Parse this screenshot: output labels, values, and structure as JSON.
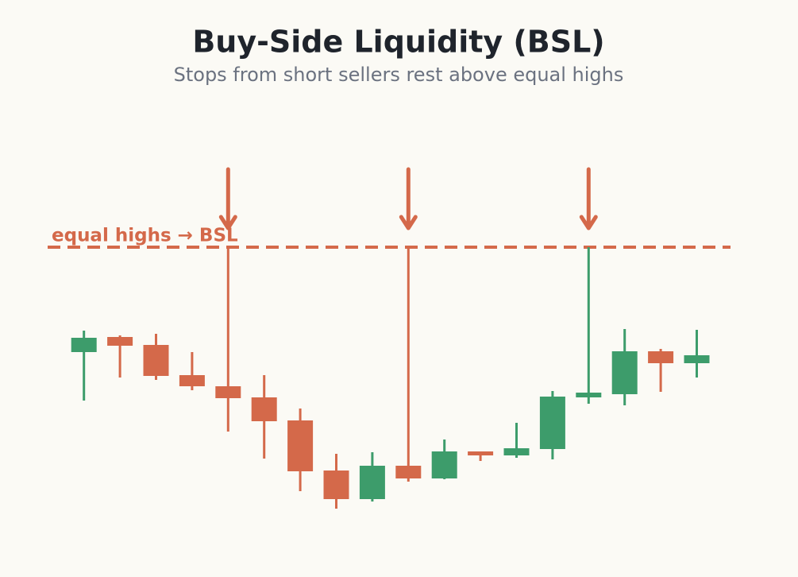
{
  "chart_data": {
    "type": "candlestick",
    "title": "Buy-Side Liquidity (BSL)",
    "subtitle": "Stops from short sellers rest above equal highs",
    "annotation": "equal highs → BSL",
    "level": 84.75,
    "up_color": "#3d9c6b",
    "down_color": "#d4694a",
    "level_color": "#d4694a",
    "ylim": [
      0,
      130
    ],
    "open": [
      51.75,
      56.5,
      54,
      44.5,
      41,
      37.5,
      30.25,
      14.5,
      5.5,
      16,
      12,
      20.5,
      19.25,
      21.25,
      37.5,
      38.5,
      52,
      48.25
    ],
    "high": [
      58.5,
      57,
      57.5,
      51.75,
      84.75,
      44.5,
      34,
      19.75,
      20.25,
      84.75,
      24.25,
      20.5,
      29.5,
      39.5,
      84.75,
      59,
      52.75,
      58.75
    ],
    "low": [
      36.5,
      43.75,
      43,
      39.75,
      26.75,
      18.25,
      8,
      2.5,
      4.75,
      11,
      11.75,
      17.5,
      18.5,
      18,
      35.5,
      35,
      39.25,
      43.75
    ],
    "close": [
      56.25,
      53.75,
      44.25,
      41,
      37.25,
      30,
      14.25,
      5.5,
      16,
      12,
      20.5,
      19.25,
      21.5,
      37.75,
      39,
      52,
      48.25,
      50.75
    ]
  }
}
